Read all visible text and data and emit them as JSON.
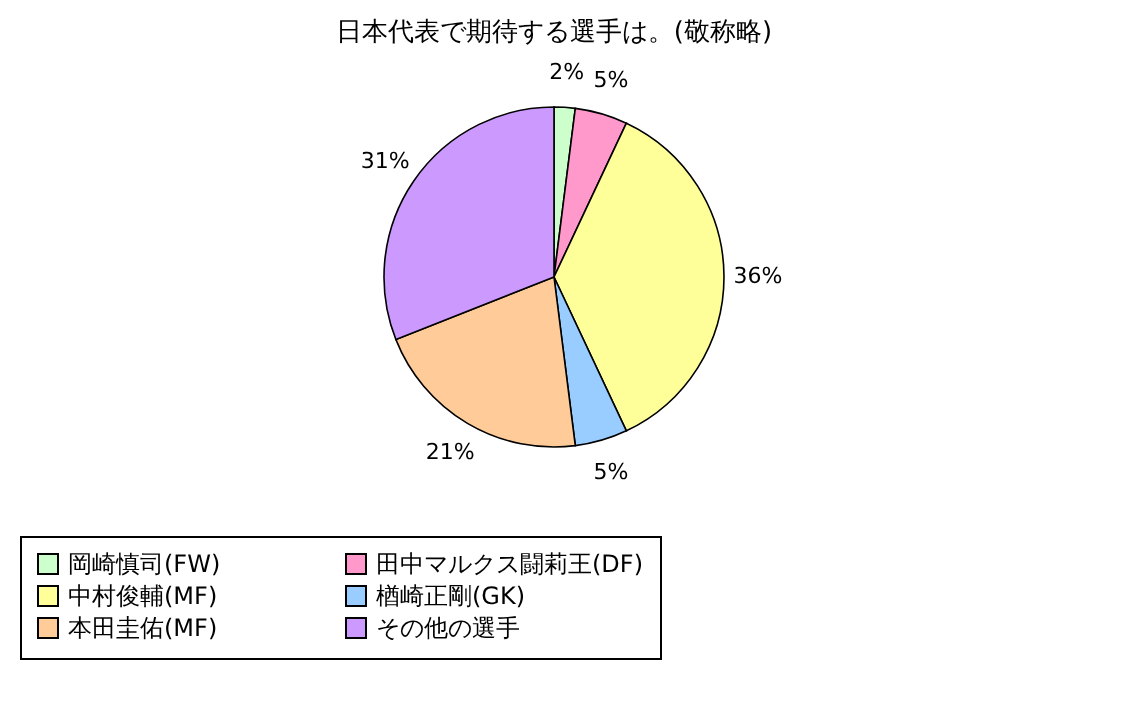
{
  "chart_data": {
    "type": "pie",
    "title": "日本代表で期待する選手は。(敬称略)",
    "categories": [
      "岡崎慎司(FW)",
      "田中マルクス闘莉王(DF)",
      "中村俊輔(MF)",
      "楢崎正剛(GK)",
      "本田圭佑(MF)",
      "その他の選手"
    ],
    "values": [
      2,
      5,
      36,
      5,
      21,
      31
    ],
    "value_labels": [
      "2%",
      "5%",
      "36%",
      "5%",
      "21%",
      "31%"
    ],
    "colors": [
      "#ccffcc",
      "#ff99cc",
      "#ffff99",
      "#99ccff",
      "#ffcc99",
      "#cc99ff"
    ],
    "legend": "bottom"
  }
}
